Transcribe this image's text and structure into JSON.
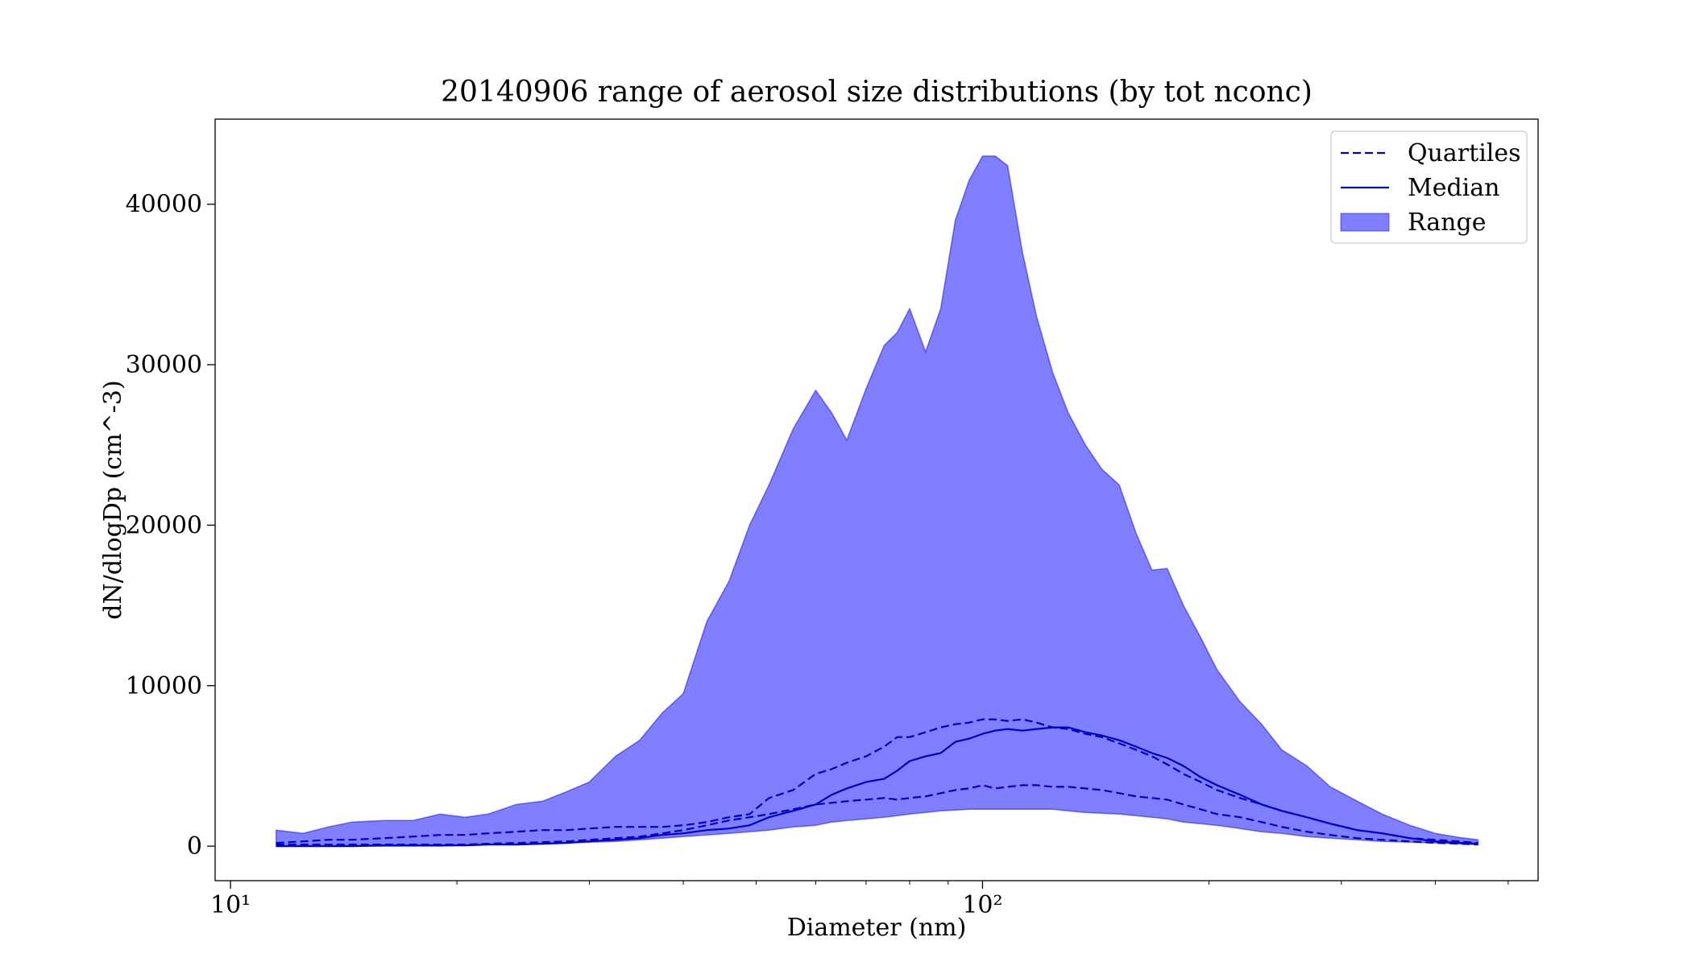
{
  "chart_data": {
    "type": "range",
    "title": "20140906 range of aerosol size distributions (by tot nconc)",
    "x_label": "Diameter (nm)",
    "y_label": "dN/dlogDp (cm^-3)",
    "x_scale": "log",
    "xlim": [
      9.54,
      548
    ],
    "ylim": [
      -2150,
      45300
    ],
    "xticks": [
      {
        "value": 10,
        "label": "10¹"
      },
      {
        "value": 100,
        "label": "10²"
      }
    ],
    "xminorticks": [
      20,
      30,
      40,
      50,
      60,
      70,
      80,
      90,
      200,
      300,
      400,
      500
    ],
    "yticks": [
      0,
      10000,
      20000,
      30000,
      40000
    ],
    "legend": "upper right",
    "x": [
      11.5,
      12.5,
      13.5,
      14.5,
      16,
      17.5,
      19,
      20.5,
      22,
      24,
      26,
      28,
      30,
      32.5,
      35,
      37.5,
      40,
      43,
      46,
      49,
      52,
      56,
      60,
      63,
      66,
      70,
      74,
      77,
      80,
      84,
      88,
      92,
      96,
      100,
      104,
      108,
      113,
      118,
      124,
      130,
      137,
      144,
      152,
      160,
      168,
      176,
      185,
      195,
      205,
      220,
      235,
      250,
      270,
      290,
      315,
      340,
      370,
      400,
      430,
      456
    ],
    "series": [
      {
        "name": "Quartiles",
        "color": "#0000cc",
        "linestyle": "dashed",
        "lower": [
          100,
          100,
          100,
          100,
          100,
          100,
          100,
          100,
          150,
          200,
          250,
          300,
          400,
          500,
          600,
          800,
          1000,
          1300,
          1600,
          1800,
          2000,
          2300,
          2600,
          2700,
          2800,
          2900,
          3000,
          2900,
          3000,
          3100,
          3300,
          3500,
          3600,
          3800,
          3600,
          3700,
          3800,
          3800,
          3700,
          3700,
          3600,
          3500,
          3300,
          3100,
          3000,
          2900,
          2600,
          2300,
          2000,
          1800,
          1500,
          1200,
          900,
          700,
          500,
          400,
          300,
          200,
          150,
          100
        ],
        "upper": [
          200,
          300,
          400,
          400,
          500,
          600,
          700,
          700,
          800,
          900,
          1000,
          1000,
          1100,
          1200,
          1200,
          1200,
          1300,
          1500,
          1800,
          2000,
          3000,
          3500,
          4500,
          4800,
          5200,
          5600,
          6200,
          6800,
          6800,
          7100,
          7400,
          7600,
          7700,
          7900,
          7900,
          7800,
          7900,
          7700,
          7400,
          7300,
          7000,
          6800,
          6400,
          6000,
          5600,
          5100,
          4500,
          4000,
          3500,
          3000,
          2600,
          2200,
          1800,
          1400,
          1000,
          800,
          500,
          400,
          300,
          200
        ]
      },
      {
        "name": "Median",
        "color": "#0000cc",
        "linestyle": "solid",
        "values": [
          0,
          0,
          0,
          0,
          50,
          50,
          50,
          50,
          100,
          100,
          150,
          200,
          300,
          400,
          500,
          700,
          800,
          1000,
          1100,
          1300,
          1800,
          2200,
          2600,
          3200,
          3600,
          4000,
          4200,
          4700,
          5300,
          5600,
          5800,
          6500,
          6700,
          7000,
          7200,
          7300,
          7200,
          7300,
          7400,
          7400,
          7100,
          6900,
          6600,
          6200,
          5800,
          5500,
          5000,
          4300,
          3800,
          3200,
          2600,
          2200,
          1800,
          1400,
          1000,
          800,
          500,
          300,
          200,
          150
        ]
      },
      {
        "name": "Range",
        "color": "#0000ff",
        "alpha": 0.5,
        "lower": [
          0,
          0,
          0,
          0,
          0,
          0,
          0,
          50,
          100,
          100,
          150,
          200,
          250,
          300,
          400,
          500,
          600,
          700,
          800,
          900,
          1000,
          1200,
          1300,
          1500,
          1600,
          1700,
          1800,
          1900,
          2000,
          2100,
          2200,
          2250,
          2300,
          2300,
          2300,
          2300,
          2300,
          2300,
          2300,
          2200,
          2100,
          2050,
          2000,
          1900,
          1800,
          1700,
          1500,
          1400,
          1300,
          1100,
          900,
          800,
          600,
          500,
          400,
          300,
          250,
          200,
          150,
          100
        ],
        "upper": [
          1000,
          800,
          1200,
          1500,
          1600,
          1600,
          2000,
          1800,
          2000,
          2600,
          2800,
          3400,
          4000,
          5600,
          6600,
          8300,
          9500,
          14000,
          16500,
          20000,
          22500,
          26000,
          28400,
          27000,
          25300,
          28500,
          31200,
          32000,
          33500,
          30800,
          33500,
          39000,
          41500,
          43000,
          43000,
          42400,
          37000,
          33000,
          29500,
          27000,
          25000,
          23500,
          22500,
          19500,
          17200,
          17300,
          15000,
          13000,
          11000,
          9000,
          7600,
          6000,
          5000,
          3700,
          2800,
          2000,
          1300,
          800,
          550,
          400
        ]
      }
    ]
  }
}
